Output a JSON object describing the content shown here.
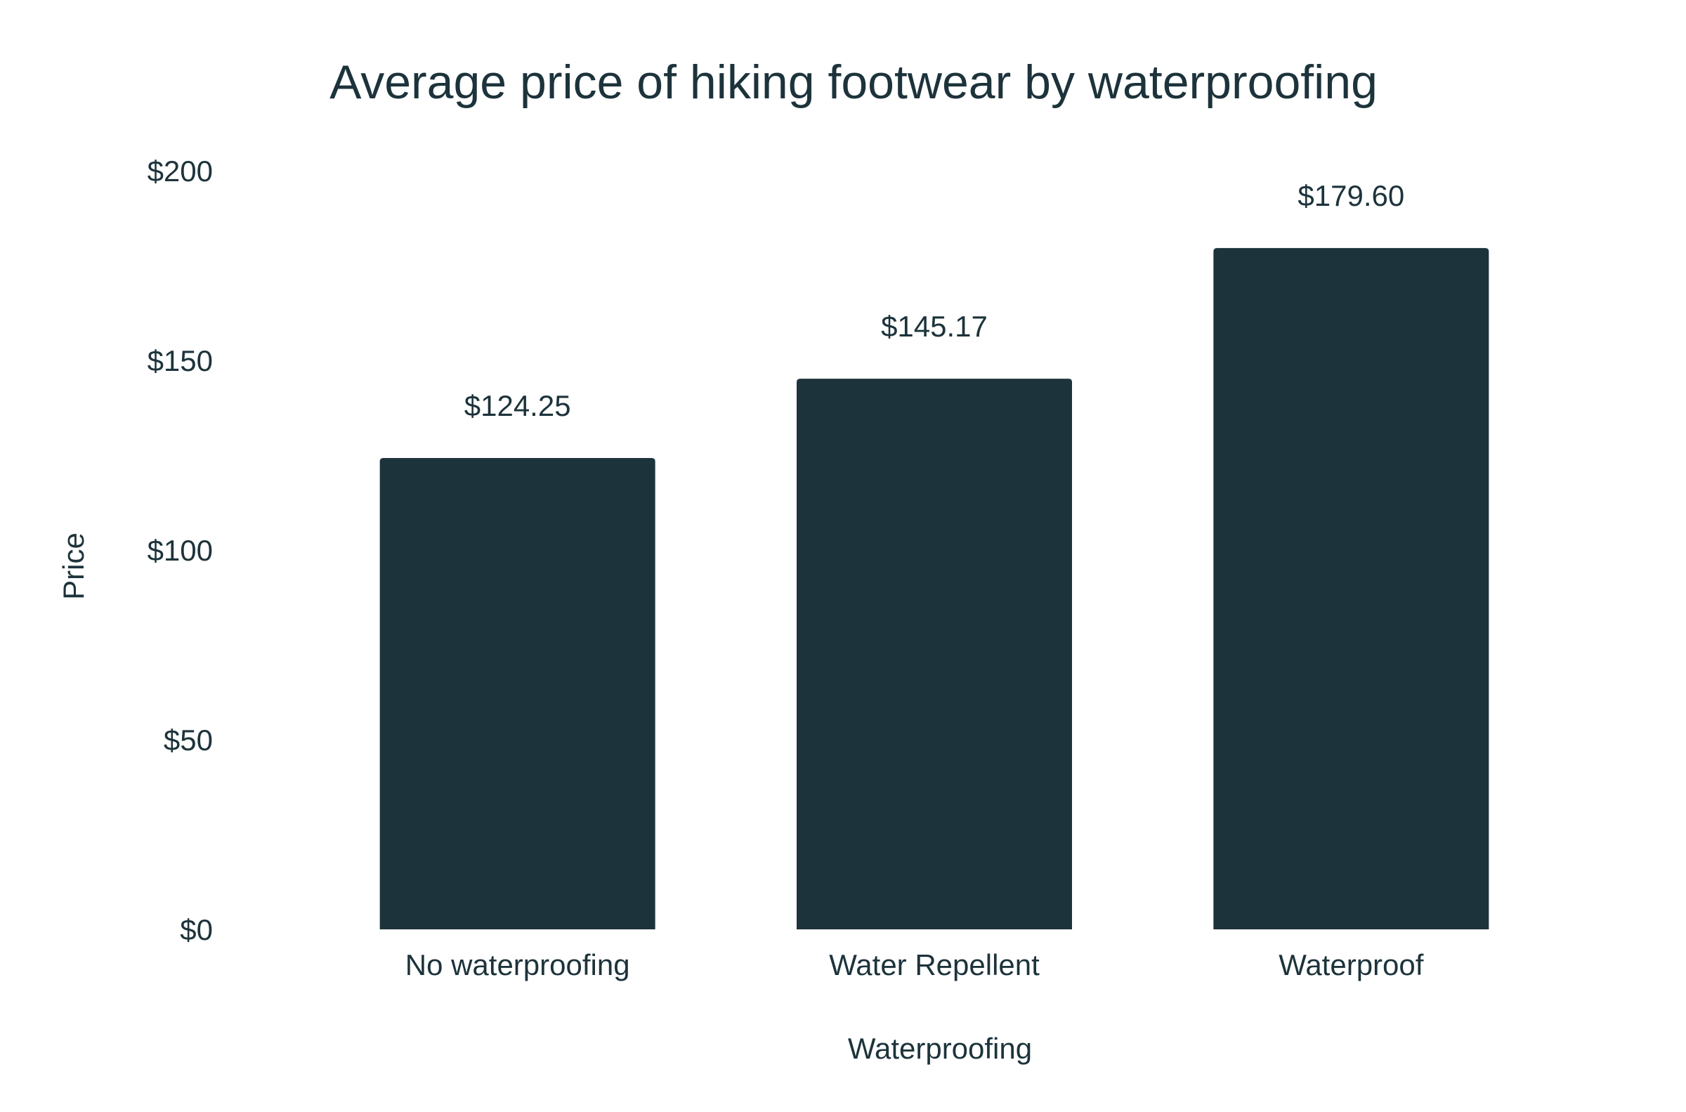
{
  "chart_data": {
    "type": "bar",
    "title": "Average price of hiking footwear by waterproofing",
    "xlabel": "Waterproofing",
    "ylabel": "Price",
    "categories": [
      "No waterproofing",
      "Water Repellent",
      "Waterproof"
    ],
    "values": [
      124.25,
      145.17,
      179.6
    ],
    "value_labels": [
      "$124.25",
      "$145.17",
      "$179.60"
    ],
    "ylim": [
      0,
      200
    ],
    "yticks": [
      0,
      50,
      100,
      150,
      200
    ],
    "ytick_labels": [
      "$0",
      "$50",
      "$100",
      "$150",
      "$200"
    ],
    "grid": false,
    "legend": "none",
    "bar_color": "#1d333b",
    "text_color": "#1d333b"
  }
}
